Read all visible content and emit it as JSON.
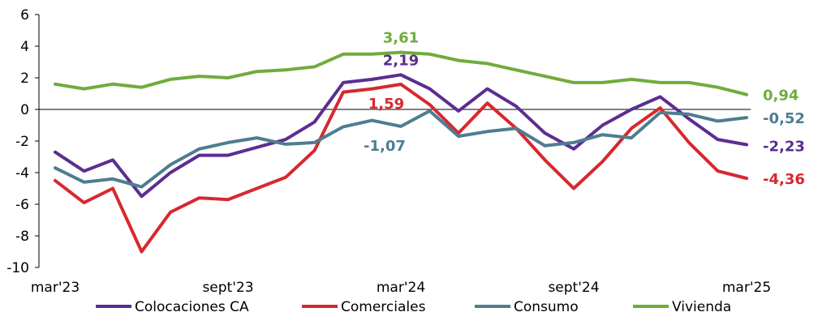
{
  "chart_data": {
    "type": "line",
    "title": "",
    "xlabel": "",
    "ylabel": "",
    "ylim": [
      -10,
      6
    ],
    "yticks": [
      -10,
      -8,
      -6,
      -4,
      -2,
      0,
      2,
      4,
      6
    ],
    "ytick_labels": [
      "-10",
      "-8",
      "-6",
      "-4",
      "-2",
      "0",
      "2",
      "4",
      "6"
    ],
    "x": [
      "2023-03",
      "2023-04",
      "2023-05",
      "2023-06",
      "2023-07",
      "2023-08",
      "2023-09",
      "2023-10",
      "2023-11",
      "2023-12",
      "2024-01",
      "2024-02",
      "2024-03",
      "2024-04",
      "2024-05",
      "2024-06",
      "2024-07",
      "2024-08",
      "2024-09",
      "2024-10",
      "2024-11",
      "2024-12",
      "2025-01",
      "2025-02",
      "2025-03"
    ],
    "xtick_labels": [
      {
        "x": "2023-03",
        "label": "mar'23"
      },
      {
        "x": "2023-09",
        "label": "sept'23"
      },
      {
        "x": "2024-03",
        "label": "mar'24"
      },
      {
        "x": "2024-09",
        "label": "sept'24"
      },
      {
        "x": "2025-03",
        "label": "mar'25"
      }
    ],
    "legend_position": "bottom",
    "grid": false,
    "series": [
      {
        "name": "Colocaciones CA",
        "color": "#5c2d91",
        "values": [
          -2.7,
          -3.9,
          -3.2,
          -5.5,
          -4.0,
          -2.9,
          -2.9,
          -2.4,
          -1.9,
          -0.8,
          1.7,
          1.9,
          2.19,
          1.3,
          -0.1,
          1.3,
          0.2,
          -1.5,
          -2.5,
          -1.0,
          0.0,
          0.8,
          -0.6,
          -1.9,
          -2.23
        ]
      },
      {
        "name": "Comerciales",
        "color": "#d7282e",
        "values": [
          -4.5,
          -5.9,
          -5.0,
          -9.0,
          -6.5,
          -5.6,
          -5.7,
          -5.0,
          -4.3,
          -2.6,
          1.1,
          1.3,
          1.59,
          0.3,
          -1.5,
          0.4,
          -1.2,
          -3.2,
          -5.0,
          -3.3,
          -1.2,
          0.1,
          -2.1,
          -3.9,
          -4.36
        ]
      },
      {
        "name": "Consumo",
        "color": "#4e7d8f",
        "values": [
          -3.7,
          -4.6,
          -4.4,
          -4.9,
          -3.5,
          -2.5,
          -2.1,
          -1.8,
          -2.2,
          -2.1,
          -1.1,
          -0.7,
          -1.07,
          -0.1,
          -1.7,
          -1.4,
          -1.2,
          -2.3,
          -2.1,
          -1.6,
          -1.8,
          -0.2,
          -0.3,
          -0.74,
          -0.52
        ]
      },
      {
        "name": "Vivienda",
        "color": "#70ac3c",
        "values": [
          1.6,
          1.3,
          1.6,
          1.4,
          1.9,
          2.1,
          2.0,
          2.4,
          2.5,
          2.7,
          3.5,
          3.5,
          3.61,
          3.5,
          3.1,
          2.9,
          2.5,
          2.1,
          1.7,
          1.7,
          1.9,
          1.7,
          1.7,
          1.4,
          0.94
        ]
      }
    ],
    "annotations": [
      {
        "series": "Vivienda",
        "x": "2024-03",
        "value": 3.61,
        "text": "3,61",
        "color": "#70ac3c"
      },
      {
        "series": "Colocaciones CA",
        "x": "2024-03",
        "value": 2.19,
        "text": "2,19",
        "color": "#5c2d91"
      },
      {
        "series": "Comerciales",
        "x": "2024-03",
        "value": 1.59,
        "text": "1,59",
        "color": "#d7282e"
      },
      {
        "series": "Consumo",
        "x": "2024-03",
        "value": -1.07,
        "text": "-1,07",
        "color": "#4e7d8f"
      },
      {
        "series": "Vivienda",
        "x": "2025-03",
        "value": 0.94,
        "text": "0,94",
        "color": "#70ac3c"
      },
      {
        "series": "Consumo",
        "x": "2025-03",
        "value": -0.52,
        "text": "-0,52",
        "color": "#4e7d8f"
      },
      {
        "series": "Colocaciones CA",
        "x": "2025-03",
        "value": -2.23,
        "text": "-2,23",
        "color": "#5c2d91"
      },
      {
        "series": "Comerciales",
        "x": "2025-03",
        "value": -4.36,
        "text": "-4,36",
        "color": "#d7282e"
      }
    ]
  }
}
